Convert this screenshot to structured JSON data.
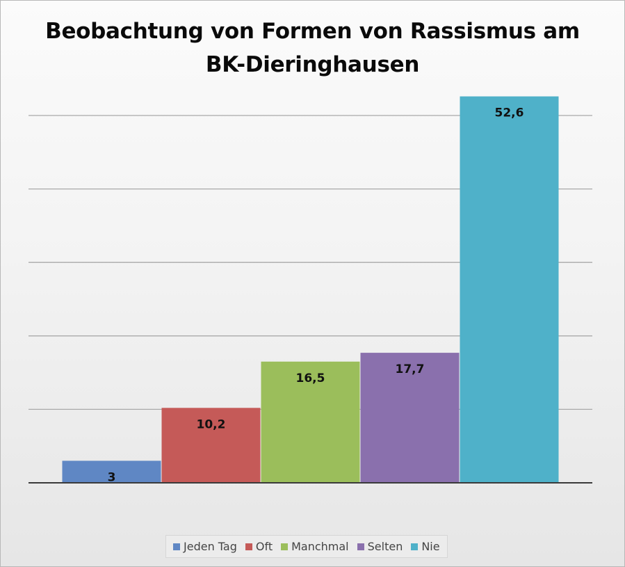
{
  "chart_data": {
    "type": "bar",
    "title": "Beobachtung von Formen von Rassismus am BK-Dieringhausen",
    "xlabel": "",
    "ylabel": "",
    "ylim": [
      0,
      60
    ],
    "grid": true,
    "legend_position": "bottom",
    "categories": [
      "Jeden Tag",
      "Oft",
      "Manchmal",
      "Selten",
      "Nie"
    ],
    "values": [
      3,
      10.2,
      16.5,
      17.7,
      52.6
    ],
    "data_labels": [
      "3",
      "10,2",
      "16,5",
      "17,7",
      "52,6"
    ],
    "colors": [
      "#5f87c4",
      "#c55a58",
      "#9bbe5b",
      "#8a70ad",
      "#4fb1c9"
    ]
  }
}
